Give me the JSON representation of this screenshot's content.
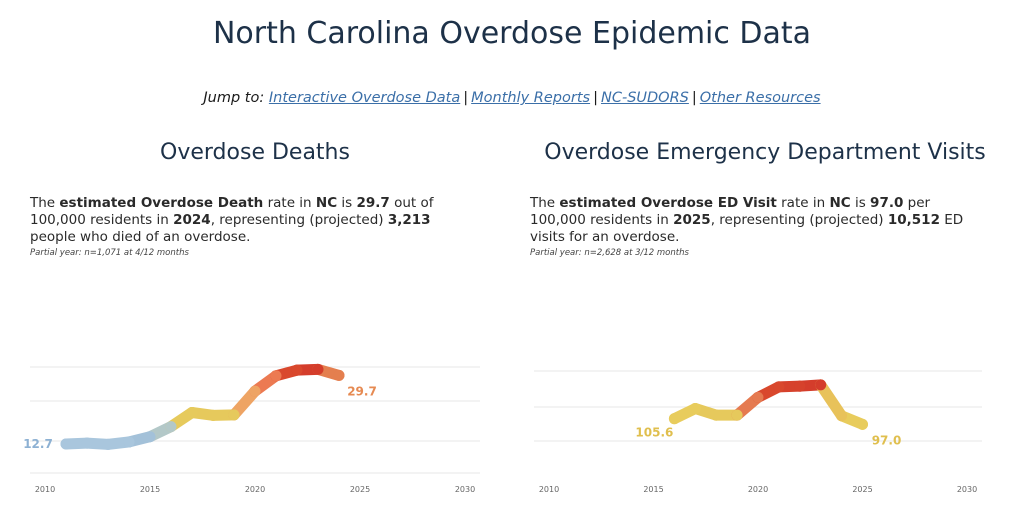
{
  "page": {
    "title": "North Carolina Overdose Epidemic Data",
    "jump_label": "Jump to:",
    "links": [
      "Interactive Overdose Data",
      "Monthly Reports",
      "NC-SUDORS",
      "Other Resources"
    ],
    "separator": "|"
  },
  "deaths": {
    "heading": "Overdose Deaths",
    "t1": "The ",
    "b1": "estimated Overdose Death",
    "t2": " rate in ",
    "b2": "NC",
    "t3": " is ",
    "b3": "29.7",
    "t4": " out of 100,000 residents in ",
    "b4": "2024",
    "t5": ", representing (projected) ",
    "b5": "3,213",
    "t6": " people who died of an overdose.",
    "note": "Partial year: n=1,071 at 4/12 months"
  },
  "ed": {
    "heading": "Overdose Emergency Department Visits",
    "t1": "The ",
    "b1": "estimated Overdose ED Visit",
    "t2": " rate in ",
    "b2": "NC",
    "t3": " is ",
    "b3": "97.0",
    "t4": " per 100,000 residents in ",
    "b4": "2025",
    "t5": ", representing (projected) ",
    "b5": "10,512",
    "t6": " ED visits for an overdose.",
    "note": "Partial year: n=2,628 at 3/12 months"
  },
  "chart_data": [
    {
      "type": "line",
      "title": "Overdose Deaths",
      "x": [
        2011,
        2012,
        2013,
        2014,
        2015,
        2016,
        2017,
        2018,
        2019,
        2020,
        2021,
        2022,
        2023,
        2024
      ],
      "values": [
        12.7,
        12.9,
        12.6,
        13.2,
        14.5,
        17.0,
        20.5,
        19.8,
        19.9,
        25.8,
        29.6,
        31.0,
        31.2,
        29.7
      ],
      "colors": [
        "#a9c6dd",
        "#a9c6dd",
        "#a9c6dd",
        "#a9c6dd",
        "#a3c1d9",
        "#b3c8c8",
        "#e6ca5c",
        "#e6c95c",
        "#e6c95c",
        "#eea464",
        "#ec7a52",
        "#d9482d",
        "#d43d2b",
        "#e47f4f"
      ],
      "xlim": [
        2010,
        2030
      ],
      "ylim": [
        5,
        36
      ],
      "xticks": [
        "2010",
        "2015",
        "2020",
        "2025",
        "2030"
      ],
      "labels": [
        {
          "text": "12.7",
          "color": "#8db1d3"
        },
        {
          "text": "29.7",
          "color": "#e68a52"
        }
      ]
    },
    {
      "type": "line",
      "title": "Overdose Emergency Department Visits",
      "x": [
        2016,
        2017,
        2018,
        2019,
        2020,
        2021,
        2022,
        2023,
        2024,
        2025
      ],
      "values": [
        105.6,
        121,
        111,
        111,
        138,
        154,
        155,
        157,
        110,
        97.0
      ],
      "colors": [
        "#e8cc5c",
        "#e8cc5c",
        "#e6c95c",
        "#e6c95c",
        "#e57a50",
        "#d9482d",
        "#d6422c",
        "#d43d2b",
        "#e8c25a",
        "#e8cc5c"
      ],
      "xlim": [
        2010,
        2030
      ],
      "ylim": [
        20,
        210
      ],
      "xticks": [
        "2010",
        "2015",
        "2020",
        "2025",
        "2030"
      ],
      "labels": [
        {
          "text": "105.6",
          "color": "#e0bf4e"
        },
        {
          "text": "97.0",
          "color": "#e0bf4e"
        }
      ]
    }
  ]
}
